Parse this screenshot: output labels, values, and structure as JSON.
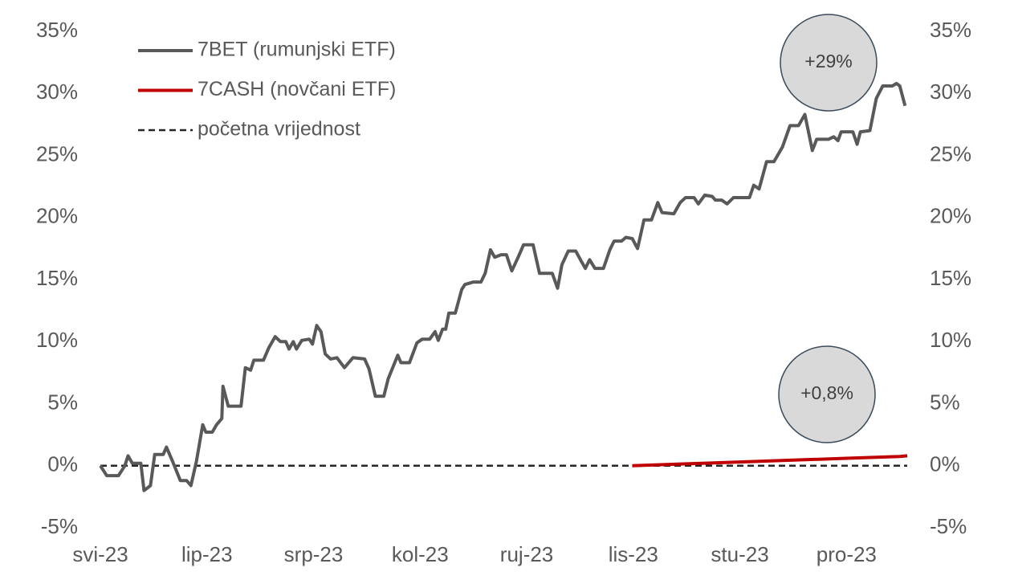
{
  "chart_data": {
    "type": "line",
    "xlim": [
      0,
      7.57
    ],
    "xticks": [
      {
        "value": 0,
        "label": "svi-23"
      },
      {
        "value": 1,
        "label": "lip-23"
      },
      {
        "value": 2,
        "label": "srp-23"
      },
      {
        "value": 3,
        "label": "kol-23"
      },
      {
        "value": 4,
        "label": "ruj-23"
      },
      {
        "value": 5,
        "label": "lis-23"
      },
      {
        "value": 6,
        "label": "stu-23"
      },
      {
        "value": 7,
        "label": "pro-23"
      }
    ],
    "ylim": [
      -5,
      35
    ],
    "yticks": [
      {
        "value": -5,
        "label": "-5%"
      },
      {
        "value": 0,
        "label": "0%"
      },
      {
        "value": 5,
        "label": "5%"
      },
      {
        "value": 10,
        "label": "10%"
      },
      {
        "value": 15,
        "label": "15%"
      },
      {
        "value": 20,
        "label": "20%"
      },
      {
        "value": 25,
        "label": "25%"
      },
      {
        "value": 30,
        "label": "30%"
      },
      {
        "value": 35,
        "label": "35%"
      }
    ],
    "y2lim": [
      -5,
      35
    ],
    "y2ticks": [
      {
        "value": -5,
        "label": "-5%"
      },
      {
        "value": 0,
        "label": "0%"
      },
      {
        "value": 5,
        "label": "5%"
      },
      {
        "value": 10,
        "label": "10%"
      },
      {
        "value": 15,
        "label": "15%"
      },
      {
        "value": 20,
        "label": "20%"
      },
      {
        "value": 25,
        "label": "25%"
      },
      {
        "value": 30,
        "label": "30%"
      },
      {
        "value": 35,
        "label": "35%"
      }
    ],
    "grid": false,
    "legend": "upper left",
    "series": [
      {
        "name": "7BET (rumunjski ETF)",
        "color": "#595959",
        "dash": false,
        "x": [
          0,
          0.06,
          0.17,
          0.23,
          0.26,
          0.3,
          0.38,
          0.41,
          0.47,
          0.51,
          0.59,
          0.62,
          0.68,
          0.75,
          0.81,
          0.85,
          0.9,
          0.96,
          0.99,
          1.05,
          1.09,
          1.14,
          1.15,
          1.2,
          1.32,
          1.36,
          1.41,
          1.44,
          1.53,
          1.58,
          1.64,
          1.69,
          1.74,
          1.77,
          1.81,
          1.84,
          1.89,
          1.96,
          1.99,
          2.03,
          2.07,
          2.11,
          2.16,
          2.22,
          2.29,
          2.37,
          2.48,
          2.52,
          2.58,
          2.66,
          2.7,
          2.79,
          2.82,
          2.9,
          2.97,
          3.02,
          3.09,
          3.14,
          3.17,
          3.21,
          3.24,
          3.27,
          3.33,
          3.39,
          3.42,
          3.5,
          3.57,
          3.61,
          3.66,
          3.7,
          3.76,
          3.81,
          3.86,
          3.92,
          3.97,
          4.06,
          4.12,
          4.24,
          4.29,
          4.33,
          4.39,
          4.46,
          4.51,
          4.55,
          4.59,
          4.64,
          4.72,
          4.78,
          4.82,
          4.89,
          4.93,
          4.99,
          5.04,
          5.1,
          5.17,
          5.23,
          5.27,
          5.38,
          5.44,
          5.49,
          5.57,
          5.61,
          5.67,
          5.74,
          5.77,
          5.83,
          5.88,
          5.94,
          6.09,
          6.13,
          6.18,
          6.25,
          6.32,
          6.4,
          6.47,
          6.55,
          6.61,
          6.68,
          6.72,
          6.83,
          6.88,
          6.92,
          6.95,
          7.06,
          7.1,
          7.13,
          7.22,
          7.28,
          7.34,
          7.43,
          7.47,
          7.5,
          7.55
        ],
        "values": [
          0,
          -0.8,
          -0.8,
          0,
          0.8,
          0.2,
          0.2,
          -2,
          -1.6,
          0.9,
          0.9,
          1.5,
          0.3,
          -1.2,
          -1.2,
          -1.6,
          0.3,
          3.3,
          2.7,
          2.7,
          3.3,
          3.8,
          6.4,
          4.8,
          4.8,
          7.9,
          7.7,
          8.5,
          8.5,
          9.5,
          10.4,
          10.0,
          10.0,
          9.4,
          10.0,
          9.4,
          10.1,
          10.2,
          9.8,
          11.3,
          10.8,
          9.0,
          8.6,
          8.7,
          7.9,
          8.7,
          8.6,
          7.8,
          5.6,
          5.6,
          7.0,
          8.9,
          8.3,
          8.3,
          9.9,
          10.2,
          10.2,
          10.8,
          10.1,
          11.0,
          11.0,
          12.3,
          12.3,
          14.2,
          14.6,
          14.8,
          14.8,
          15.5,
          17.4,
          16.8,
          17.0,
          17.0,
          15.7,
          16.8,
          17.8,
          17.8,
          15.5,
          15.5,
          14.3,
          16.2,
          17.3,
          17.3,
          16.5,
          15.9,
          16.6,
          15.9,
          15.9,
          17.4,
          18.1,
          18.1,
          18.4,
          18.3,
          17.5,
          19.8,
          19.8,
          21.2,
          20.4,
          20.3,
          21.2,
          21.6,
          21.6,
          21.1,
          21.8,
          21.7,
          21.4,
          21.4,
          21.1,
          21.6,
          21.6,
          22.6,
          22.3,
          24.5,
          24.5,
          25.7,
          27.4,
          27.4,
          28.3,
          25.4,
          26.3,
          26.3,
          26.5,
          26.2,
          26.9,
          26.9,
          25.9,
          26.9,
          27.0,
          29.6,
          30.6,
          30.6,
          30.8,
          30.6,
          29.0
        ]
      },
      {
        "name": "7CASH (novčani ETF)",
        "color": "#c00000",
        "dash": false,
        "x": [
          4.99,
          5.5,
          6.0,
          6.5,
          7.0,
          7.5,
          7.57
        ],
        "values": [
          0,
          0.15,
          0.3,
          0.45,
          0.6,
          0.75,
          0.8
        ]
      },
      {
        "name": "početna vrijednost",
        "color": "#262626",
        "dash": true,
        "x": [
          0,
          7.57
        ],
        "values": [
          0,
          0
        ]
      }
    ],
    "annotations": [
      "+29%",
      "+0,8%"
    ]
  }
}
